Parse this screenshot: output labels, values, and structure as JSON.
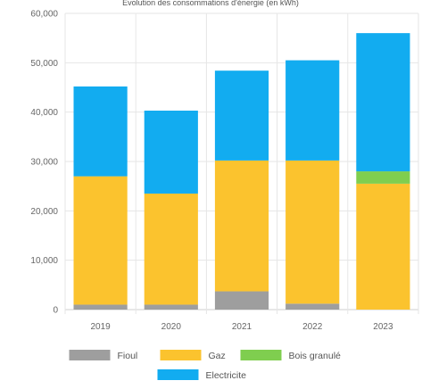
{
  "chart_data": {
    "type": "bar",
    "stacked": true,
    "title": "Evolution des consommations d'énergie (en kWh)",
    "categories": [
      "2019",
      "2020",
      "2021",
      "2022",
      "2023"
    ],
    "series": [
      {
        "name": "Fioul",
        "color": "#9e9e9e",
        "values": [
          1000,
          1000,
          3700,
          1200,
          0
        ]
      },
      {
        "name": "Gaz",
        "color": "#fbc32e",
        "values": [
          26000,
          22500,
          26500,
          29000,
          25500
        ]
      },
      {
        "name": "Bois granulé",
        "color": "#7fce4f",
        "values": [
          0,
          0,
          0,
          0,
          2500
        ]
      },
      {
        "name": "Electricite",
        "color": "#12acf0",
        "values": [
          18200,
          16800,
          18200,
          20300,
          28000
        ]
      }
    ],
    "yticks": [
      "0",
      "10,000",
      "20,000",
      "30,000",
      "40,000",
      "50,000",
      "60,000"
    ],
    "ylim": [
      0,
      60000
    ],
    "grid": true,
    "legend_position": "bottom"
  }
}
